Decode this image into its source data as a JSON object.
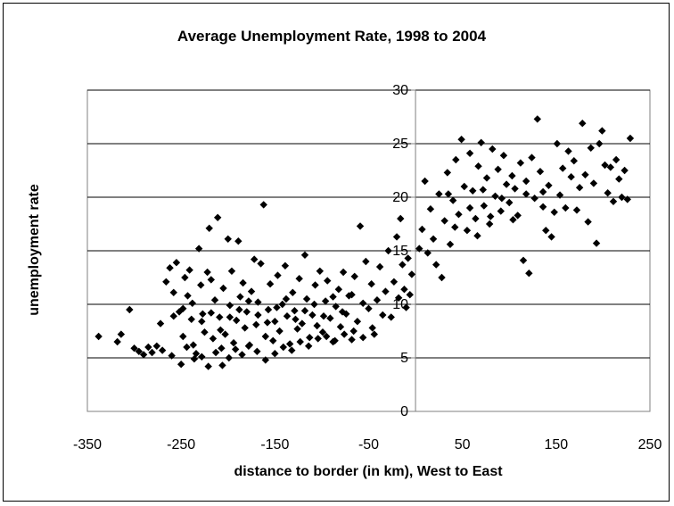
{
  "chart_data": {
    "type": "scatter",
    "title": "Average Unemployment Rate, 1998 to 2004",
    "xlabel": "distance to border (in km), West to East",
    "ylabel": "unemployment rate",
    "xlim": [
      -350,
      250
    ],
    "ylim": [
      0,
      30
    ],
    "xticks": [
      -350,
      -250,
      -150,
      -50,
      50,
      150,
      250
    ],
    "yticks": [
      0,
      5,
      10,
      15,
      20,
      25,
      30
    ],
    "grid": "horizontal",
    "legend": "none",
    "marker": "diamond",
    "marker_color": "#000000",
    "points": [
      [
        -338,
        7.0
      ],
      [
        -318,
        6.5
      ],
      [
        -314,
        7.2
      ],
      [
        -305,
        9.5
      ],
      [
        -300,
        5.9
      ],
      [
        -295,
        5.6
      ],
      [
        -290,
        5.3
      ],
      [
        -285,
        6.0
      ],
      [
        -281,
        5.5
      ],
      [
        -276,
        6.1
      ],
      [
        -272,
        8.2
      ],
      [
        -270,
        5.7
      ],
      [
        -266,
        12.1
      ],
      [
        -262,
        13.4
      ],
      [
        -258,
        11.1
      ],
      [
        -255,
        13.9
      ],
      [
        -252,
        9.3
      ],
      [
        -248,
        7.0
      ],
      [
        -246,
        12.5
      ],
      [
        -243,
        10.8
      ],
      [
        -241,
        13.2
      ],
      [
        -239,
        8.6
      ],
      [
        -237,
        6.2
      ],
      [
        -234,
        5.4
      ],
      [
        -231,
        15.2
      ],
      [
        -229,
        11.8
      ],
      [
        -227,
        9.1
      ],
      [
        -225,
        7.4
      ],
      [
        -222,
        13.0
      ],
      [
        -220,
        17.1
      ],
      [
        -218,
        12.3
      ],
      [
        -216,
        6.8
      ],
      [
        -214,
        10.4
      ],
      [
        -211,
        18.1
      ],
      [
        -209,
        8.8
      ],
      [
        -207,
        5.9
      ],
      [
        -205,
        11.5
      ],
      [
        -203,
        7.2
      ],
      [
        -200,
        16.1
      ],
      [
        -198,
        9.9
      ],
      [
        -196,
        13.1
      ],
      [
        -194,
        6.4
      ],
      [
        -191,
        8.5
      ],
      [
        -189,
        15.9
      ],
      [
        -187,
        10.7
      ],
      [
        -184,
        12.0
      ],
      [
        -182,
        7.8
      ],
      [
        -180,
        9.3
      ],
      [
        -178,
        6.1
      ],
      [
        -175,
        11.2
      ],
      [
        -172,
        14.2
      ],
      [
        -170,
        8.1
      ],
      [
        -168,
        10.2
      ],
      [
        -165,
        13.8
      ],
      [
        -162,
        19.3
      ],
      [
        -160,
        7.0
      ],
      [
        -157,
        9.5
      ],
      [
        -155,
        11.9
      ],
      [
        -152,
        6.6
      ],
      [
        -150,
        8.4
      ],
      [
        -147,
        12.7
      ],
      [
        -145,
        7.5
      ],
      [
        -142,
        10.0
      ],
      [
        -139,
        13.6
      ],
      [
        -137,
        8.9
      ],
      [
        -134,
        6.3
      ],
      [
        -131,
        11.1
      ],
      [
        -129,
        9.4
      ],
      [
        -126,
        7.7
      ],
      [
        -124,
        12.4
      ],
      [
        -121,
        8.2
      ],
      [
        -118,
        14.6
      ],
      [
        -116,
        10.5
      ],
      [
        -113,
        6.9
      ],
      [
        -110,
        9.0
      ],
      [
        -107,
        11.8
      ],
      [
        -105,
        8.0
      ],
      [
        -102,
        13.1
      ],
      [
        -99,
        7.4
      ],
      [
        -96,
        10.3
      ],
      [
        -94,
        12.2
      ],
      [
        -91,
        8.7
      ],
      [
        -88,
        6.5
      ],
      [
        -85,
        9.8
      ],
      [
        -82,
        11.4
      ],
      [
        -80,
        7.9
      ],
      [
        -77,
        13.0
      ],
      [
        -74,
        9.1
      ],
      [
        -71,
        10.8
      ],
      [
        -68,
        6.7
      ],
      [
        -65,
        12.6
      ],
      [
        -62,
        8.4
      ],
      [
        -59,
        17.3
      ],
      [
        -56,
        10.1
      ],
      [
        -53,
        14.0
      ],
      [
        -50,
        9.6
      ],
      [
        -47,
        11.9
      ],
      [
        -44,
        7.2
      ],
      [
        -41,
        10.4
      ],
      [
        -38,
        13.5
      ],
      [
        -35,
        9.0
      ],
      [
        -32,
        11.2
      ],
      [
        -29,
        15.0
      ],
      [
        -26,
        8.8
      ],
      [
        -23,
        12.1
      ],
      [
        -20,
        16.3
      ],
      [
        -18,
        10.6
      ],
      [
        -16,
        18.0
      ],
      [
        -14,
        13.7
      ],
      [
        -12,
        11.4
      ],
      [
        -10,
        9.7
      ],
      [
        -8,
        14.3
      ],
      [
        -6,
        10.9
      ],
      [
        -4,
        12.8
      ],
      [
        -260,
        5.2
      ],
      [
        -250,
        4.4
      ],
      [
        -244,
        6.0
      ],
      [
        -236,
        4.9
      ],
      [
        -228,
        5.1
      ],
      [
        -221,
        4.2
      ],
      [
        -213,
        5.5
      ],
      [
        -206,
        4.3
      ],
      [
        -199,
        5.0
      ],
      [
        -192,
        5.8
      ],
      [
        -185,
        5.3
      ],
      [
        -177,
        6.2
      ],
      [
        -169,
        5.6
      ],
      [
        -160,
        4.8
      ],
      [
        -150,
        5.4
      ],
      [
        -141,
        6.0
      ],
      [
        -132,
        5.7
      ],
      [
        -123,
        6.5
      ],
      [
        -114,
        6.1
      ],
      [
        -104,
        6.8
      ],
      [
        -95,
        7.0
      ],
      [
        -86,
        6.6
      ],
      [
        -76,
        7.2
      ],
      [
        -66,
        7.5
      ],
      [
        -56,
        6.9
      ],
      [
        -46,
        7.8
      ],
      [
        -258,
        8.9
      ],
      [
        -248,
        9.6
      ],
      [
        -238,
        10.1
      ],
      [
        -228,
        8.4
      ],
      [
        -218,
        9.2
      ],
      [
        -208,
        7.6
      ],
      [
        -198,
        8.8
      ],
      [
        -188,
        9.5
      ],
      [
        -178,
        10.3
      ],
      [
        -168,
        9.0
      ],
      [
        -158,
        8.3
      ],
      [
        -148,
        9.7
      ],
      [
        -138,
        10.5
      ],
      [
        -128,
        8.6
      ],
      [
        -118,
        9.4
      ],
      [
        -108,
        10.0
      ],
      [
        -98,
        8.9
      ],
      [
        -88,
        10.7
      ],
      [
        -78,
        9.3
      ],
      [
        -68,
        10.9
      ],
      [
        4,
        15.2
      ],
      [
        7,
        17.0
      ],
      [
        10,
        21.5
      ],
      [
        13,
        14.8
      ],
      [
        16,
        18.9
      ],
      [
        19,
        16.1
      ],
      [
        22,
        13.7
      ],
      [
        25,
        20.3
      ],
      [
        28,
        12.5
      ],
      [
        31,
        17.8
      ],
      [
        34,
        22.3
      ],
      [
        37,
        15.6
      ],
      [
        40,
        19.7
      ],
      [
        43,
        23.5
      ],
      [
        46,
        18.4
      ],
      [
        49,
        25.4
      ],
      [
        52,
        21.0
      ],
      [
        55,
        16.9
      ],
      [
        58,
        24.1
      ],
      [
        61,
        20.6
      ],
      [
        64,
        18.0
      ],
      [
        67,
        22.9
      ],
      [
        70,
        25.1
      ],
      [
        73,
        19.2
      ],
      [
        76,
        21.8
      ],
      [
        79,
        17.5
      ],
      [
        82,
        24.5
      ],
      [
        85,
        20.1
      ],
      [
        88,
        22.6
      ],
      [
        91,
        18.7
      ],
      [
        94,
        23.9
      ],
      [
        97,
        21.2
      ],
      [
        100,
        19.5
      ],
      [
        103,
        22.0
      ],
      [
        106,
        20.8
      ],
      [
        109,
        18.3
      ],
      [
        112,
        23.2
      ],
      [
        115,
        14.1
      ],
      [
        118,
        21.5
      ],
      [
        121,
        12.9
      ],
      [
        124,
        23.7
      ],
      [
        127,
        19.9
      ],
      [
        130,
        27.3
      ],
      [
        133,
        22.4
      ],
      [
        136,
        20.5
      ],
      [
        139,
        16.9
      ],
      [
        142,
        21.1
      ],
      [
        145,
        16.3
      ],
      [
        148,
        18.6
      ],
      [
        151,
        25.0
      ],
      [
        154,
        20.2
      ],
      [
        157,
        22.7
      ],
      [
        160,
        19.0
      ],
      [
        163,
        24.3
      ],
      [
        166,
        21.9
      ],
      [
        169,
        23.4
      ],
      [
        172,
        18.8
      ],
      [
        175,
        20.9
      ],
      [
        178,
        26.9
      ],
      [
        181,
        22.1
      ],
      [
        184,
        17.7
      ],
      [
        187,
        24.6
      ],
      [
        190,
        21.3
      ],
      [
        193,
        15.7
      ],
      [
        196,
        25.0
      ],
      [
        199,
        26.2
      ],
      [
        202,
        23.0
      ],
      [
        205,
        20.4
      ],
      [
        208,
        22.8
      ],
      [
        211,
        19.6
      ],
      [
        214,
        23.5
      ],
      [
        217,
        21.7
      ],
      [
        220,
        20.0
      ],
      [
        223,
        22.5
      ],
      [
        226,
        19.8
      ],
      [
        229,
        25.5
      ],
      [
        35,
        20.3
      ],
      [
        42,
        17.2
      ],
      [
        58,
        19.0
      ],
      [
        66,
        16.4
      ],
      [
        72,
        20.7
      ],
      [
        80,
        18.2
      ],
      [
        92,
        19.9
      ],
      [
        104,
        17.9
      ],
      [
        118,
        20.3
      ],
      [
        136,
        19.1
      ]
    ]
  }
}
